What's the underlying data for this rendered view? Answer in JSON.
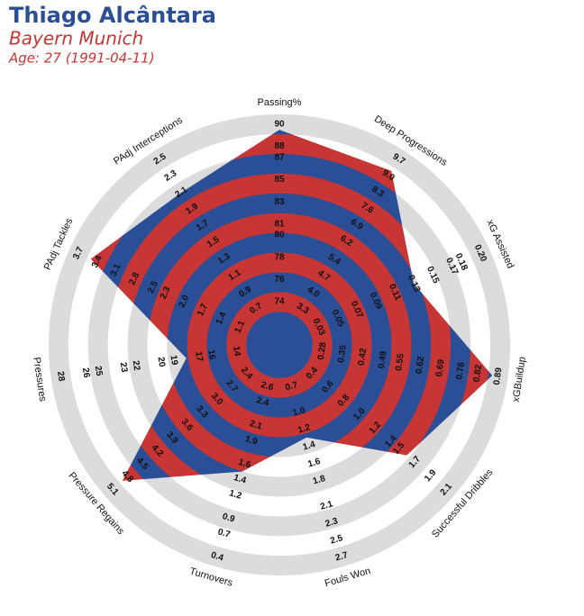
{
  "chart_data": {
    "type": "radar",
    "title": "Thiago Alcântara",
    "subtitle": "Bayern Munich",
    "caption": "Age: 27 (1991-04-11)",
    "colors": {
      "inner": "#2b4f97",
      "alternate": "#c73534",
      "ring": "#dcdcdc"
    },
    "axes": [
      {
        "name": "Passing%",
        "lim": [
          74,
          90
        ],
        "ticks": [
          74,
          76,
          78,
          80,
          81,
          83,
          85,
          87,
          88,
          90
        ],
        "value": 89.5
      },
      {
        "name": "Deep Progressions",
        "lim": [
          3.3,
          9.7
        ],
        "ticks": [
          3.3,
          {
            "value": 4,
            "label": "4.0"
          },
          4.7,
          5.4,
          6.2,
          6.9,
          7.6,
          8.3,
          {
            "value": 9,
            "label": "9.0"
          },
          9.7
        ],
        "value": 9.2
      },
      {
        "name": "xG Assisted",
        "lim": [
          0.03,
          0.2
        ],
        "ticks": [
          0.03,
          0.05,
          0.07,
          0.09,
          0.11,
          0.13,
          0.15,
          0.17,
          0.18,
          {
            "value": 0.2,
            "label": "0.20"
          }
        ],
        "value": 0.13
      },
      {
        "name": "xGBuildup",
        "lim": [
          0.28,
          0.89
        ],
        "ticks": [
          0.28,
          0.35,
          0.42,
          0.49,
          0.55,
          0.62,
          0.69,
          0.76,
          0.82,
          0.89
        ],
        "value": 0.87
      },
      {
        "name": "Successful Dribbles",
        "lim": [
          0.4,
          2.1
        ],
        "ticks": [
          0.4,
          0.6,
          0.8,
          {
            "value": 1,
            "label": "1.0"
          },
          1.2,
          1.4,
          1.5,
          1.7,
          1.9,
          2.1
        ],
        "value": 1.6
      },
      {
        "name": "Fouls Won",
        "lim": [
          0.7,
          2.7
        ],
        "ticks": [
          0.7,
          {
            "value": 1,
            "label": "1.0"
          },
          1.2,
          1.4,
          1.6,
          1.8,
          2.1,
          2.3,
          2.5,
          2.7
        ],
        "value": 1.3
      },
      {
        "name": "Turnovers",
        "lim": [
          2.6,
          0.4
        ],
        "ticks": [
          2.6,
          2.4,
          2.1,
          1.9,
          1.6,
          1.4,
          1.2,
          0.9,
          0.7,
          0.4
        ],
        "value": 1.5
      },
      {
        "name": "Pressure Regains",
        "lim": [
          2.4,
          5.1
        ],
        "ticks": [
          2.4,
          2.7,
          {
            "value": 3,
            "label": "3.0"
          },
          3.3,
          3.6,
          3.9,
          4.2,
          4.5,
          4.8,
          5.1
        ],
        "value": 4.9
      },
      {
        "name": "Pressures",
        "lim": [
          14,
          28
        ],
        "ticks": [
          14,
          16,
          17,
          19,
          20,
          22,
          23,
          25,
          26,
          28
        ],
        "value": 18
      },
      {
        "name": "PAdj Tackles",
        "lim": [
          1.1,
          3.7
        ],
        "ticks": [
          1.1,
          1.4,
          1.7,
          {
            "value": 2,
            "label": "2.0"
          },
          2.3,
          2.5,
          2.8,
          3.1,
          3.4,
          3.7
        ],
        "value": 3.5
      },
      {
        "name": "PAdj Interceptions",
        "lim": [
          0.7,
          2.5
        ],
        "ticks": [
          0.7,
          0.9,
          1.1,
          1.3,
          1.5,
          1.7,
          1.9,
          2.1,
          2.3,
          2.5
        ],
        "value": 2.1
      }
    ]
  }
}
